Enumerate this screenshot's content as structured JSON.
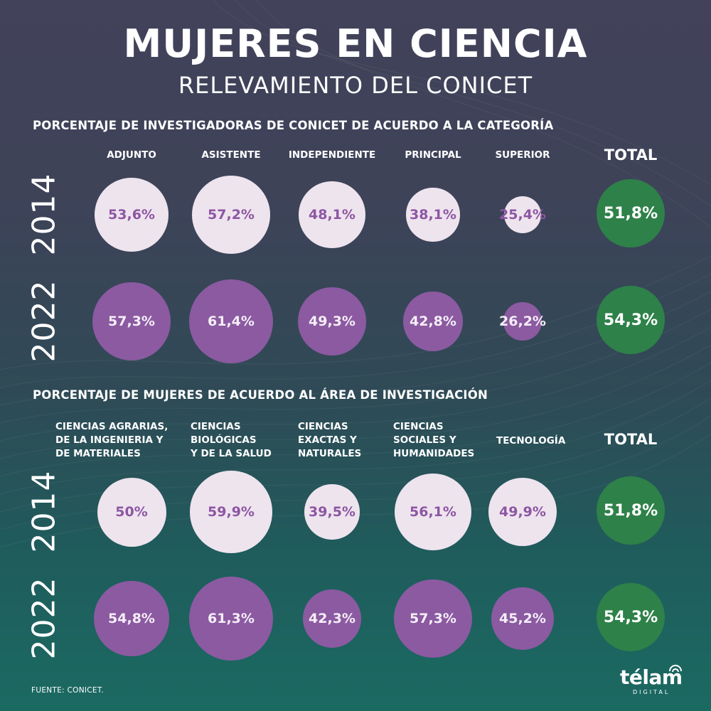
{
  "title": "MUJERES EN CIENCIA",
  "subtitle": "RELEVAMIENTO DEL CONICET",
  "source": "FUENTE: CONICET.",
  "logo": {
    "word": "télam",
    "sub": "DIGITAL"
  },
  "colors": {
    "background_top": "#42425a",
    "background_bottom": "#1b6a62",
    "bubble_2014": "#eee4ee",
    "bubble_2022": "#8b5aa1",
    "bubble_total": "#2e8149",
    "value_text_2014": "#8d56a3"
  },
  "chart_data": [
    {
      "type": "bubble",
      "title": "PORCENTAJE DE INVESTIGADORAS DE CONICET DE ACUERDO A LA CATEGORÍA",
      "categories": [
        "ADJUNTO",
        "ASISTENTE",
        "INDEPENDIENTE",
        "PRINCIPAL",
        "SUPERIOR"
      ],
      "total_label": "TOTAL",
      "unit": "%",
      "series": [
        {
          "name": "2014",
          "values": [
            53.6,
            57.2,
            48.1,
            38.1,
            25.4
          ],
          "labels": [
            "53,6%",
            "57,2%",
            "48,1%",
            "38,1%",
            "25,4%"
          ],
          "total": 51.8,
          "total_label": "51,8%"
        },
        {
          "name": "2022",
          "values": [
            57.3,
            61.4,
            49.3,
            42.8,
            26.2
          ],
          "labels": [
            "57,3%",
            "61,4%",
            "49,3%",
            "42,8%",
            "26,2%"
          ],
          "total": 54.3,
          "total_label": "54,3%"
        }
      ]
    },
    {
      "type": "bubble",
      "title": "PORCENTAJE DE MUJERES DE ACUERDO AL ÁREA DE INVESTIGACIÓN",
      "categories": [
        "CIENCIAS AGRARIAS,\nDE LA INGENIERIA Y\nDE MATERIALES",
        "CIENCIAS\nBIOLÓGICAS\nY DE LA SALUD",
        "CIENCIAS\nEXACTAS Y\nNATURALES",
        "CIENCIAS\nSOCIALES Y\nHUMANIDADES",
        "TECNOLOGÍA"
      ],
      "total_label": "TOTAL",
      "unit": "%",
      "series": [
        {
          "name": "2014",
          "values": [
            50,
            59.9,
            39.5,
            56.1,
            49.9
          ],
          "labels": [
            "50%",
            "59,9%",
            "39,5%",
            "56,1%",
            "49,9%"
          ],
          "total": 51.8,
          "total_label": "51,8%"
        },
        {
          "name": "2022",
          "values": [
            54.8,
            61.3,
            42.3,
            57.3,
            45.2
          ],
          "labels": [
            "54,8%",
            "61,3%",
            "42,3%",
            "57,3%",
            "45,2%"
          ],
          "total": 54.3,
          "total_label": "54,3%"
        }
      ]
    }
  ]
}
